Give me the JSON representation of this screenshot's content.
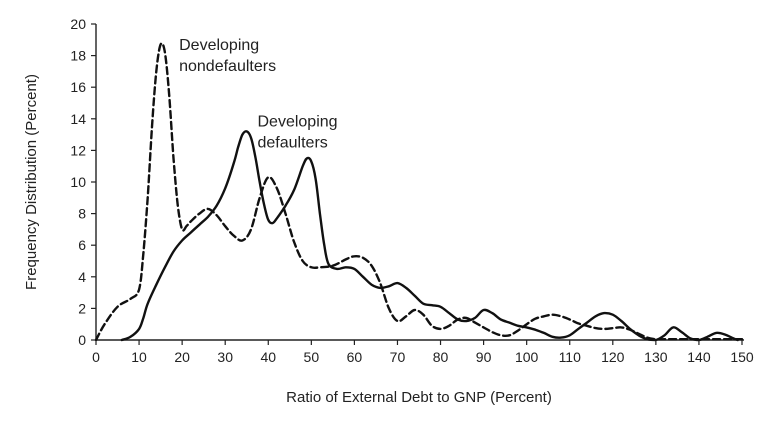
{
  "chart_data": {
    "type": "line",
    "title": "",
    "xlabel": "Ratio of External Debt to GNP (Percent)",
    "ylabel": "Frequency Distribution (Percent)",
    "xlim": [
      0,
      150
    ],
    "ylim": [
      0,
      20
    ],
    "xticks": [
      0,
      10,
      20,
      30,
      40,
      50,
      60,
      70,
      80,
      90,
      100,
      110,
      120,
      130,
      140,
      150
    ],
    "yticks": [
      0,
      2,
      4,
      6,
      8,
      10,
      12,
      14,
      16,
      18,
      20
    ],
    "grid": false,
    "legend": "none",
    "series": [
      {
        "name": "Developing nondefaulters",
        "style": "dashed",
        "x": [
          0,
          2,
          5,
          8,
          10,
          11,
          12,
          13,
          14,
          15,
          16,
          17,
          18,
          19,
          20,
          21,
          22,
          24,
          26,
          28,
          30,
          32,
          34,
          36,
          38,
          40,
          42,
          44,
          46,
          48,
          50,
          52,
          55,
          58,
          60,
          62,
          64,
          66,
          68,
          70,
          72,
          74,
          76,
          78,
          80,
          82,
          84,
          86,
          88,
          90,
          92,
          94,
          96,
          98,
          100,
          102,
          104,
          106,
          108,
          110,
          112,
          114,
          116,
          118,
          120,
          122,
          124,
          126,
          128,
          130,
          132,
          134,
          136,
          138,
          140,
          142,
          144,
          146,
          148,
          150
        ],
        "y": [
          0,
          1,
          2.1,
          2.6,
          3.2,
          5.5,
          9,
          13.5,
          17,
          18.7,
          18.2,
          15.5,
          11.5,
          8.5,
          7,
          7.2,
          7.5,
          8,
          8.3,
          7.9,
          7.2,
          6.6,
          6.3,
          7,
          9,
          10.3,
          9.6,
          8,
          6.2,
          5,
          4.6,
          4.6,
          4.7,
          5.1,
          5.3,
          5.2,
          4.7,
          3.6,
          2,
          1.2,
          1.5,
          1.9,
          1.6,
          0.9,
          0.7,
          0.9,
          1.3,
          1.4,
          1.1,
          0.8,
          0.5,
          0.3,
          0.3,
          0.6,
          1,
          1.35,
          1.5,
          1.6,
          1.5,
          1.3,
          1.05,
          0.9,
          0.75,
          0.7,
          0.75,
          0.8,
          0.65,
          0.4,
          0.15,
          0.05,
          0.05,
          0.05,
          0.05,
          0.05,
          0.05,
          0.05,
          0.05,
          0.05,
          0.05,
          0.05
        ]
      },
      {
        "name": "Developing defaulters",
        "style": "solid",
        "x": [
          6,
          8,
          10,
          11,
          12,
          14,
          16,
          18,
          20,
          22,
          24,
          26,
          28,
          30,
          32,
          33,
          34,
          35,
          36,
          37,
          38,
          39,
          40,
          41,
          42,
          44,
          46,
          48,
          49,
          50,
          51,
          52,
          53,
          54,
          56,
          58,
          60,
          62,
          64,
          66,
          68,
          70,
          72,
          74,
          76,
          78,
          80,
          82,
          84,
          86,
          88,
          90,
          92,
          94,
          96,
          98,
          100,
          102,
          104,
          106,
          108,
          110,
          112,
          114,
          116,
          118,
          120,
          122,
          124,
          126,
          128,
          130,
          132,
          134,
          136,
          138,
          140,
          142,
          144,
          146,
          148,
          149
        ],
        "y": [
          0,
          0.2,
          0.7,
          1.4,
          2.3,
          3.5,
          4.6,
          5.6,
          6.3,
          6.8,
          7.3,
          7.8,
          8.5,
          9.6,
          11.2,
          12.2,
          13,
          13.2,
          12.8,
          11.6,
          10,
          8.6,
          7.6,
          7.4,
          7.7,
          8.5,
          9.5,
          11,
          11.5,
          11.3,
          10.2,
          8,
          6,
          4.8,
          4.5,
          4.6,
          4.5,
          4,
          3.5,
          3.3,
          3.4,
          3.6,
          3.3,
          2.8,
          2.3,
          2.2,
          2.1,
          1.7,
          1.3,
          1.2,
          1.4,
          1.9,
          1.7,
          1.3,
          1.1,
          0.9,
          0.8,
          0.65,
          0.45,
          0.2,
          0.15,
          0.3,
          0.7,
          1.1,
          1.5,
          1.7,
          1.6,
          1.2,
          0.7,
          0.3,
          0.05,
          0,
          0.3,
          0.8,
          0.5,
          0.1,
          0,
          0.2,
          0.45,
          0.35,
          0.1,
          0
        ]
      }
    ],
    "annotations": [
      {
        "lines": [
          "Developing",
          "nondefaulters"
        ],
        "x": 19.3,
        "y": 18.35
      },
      {
        "lines": [
          "Developing",
          "defaulters"
        ],
        "x": 37.5,
        "y": 13.5
      }
    ]
  }
}
